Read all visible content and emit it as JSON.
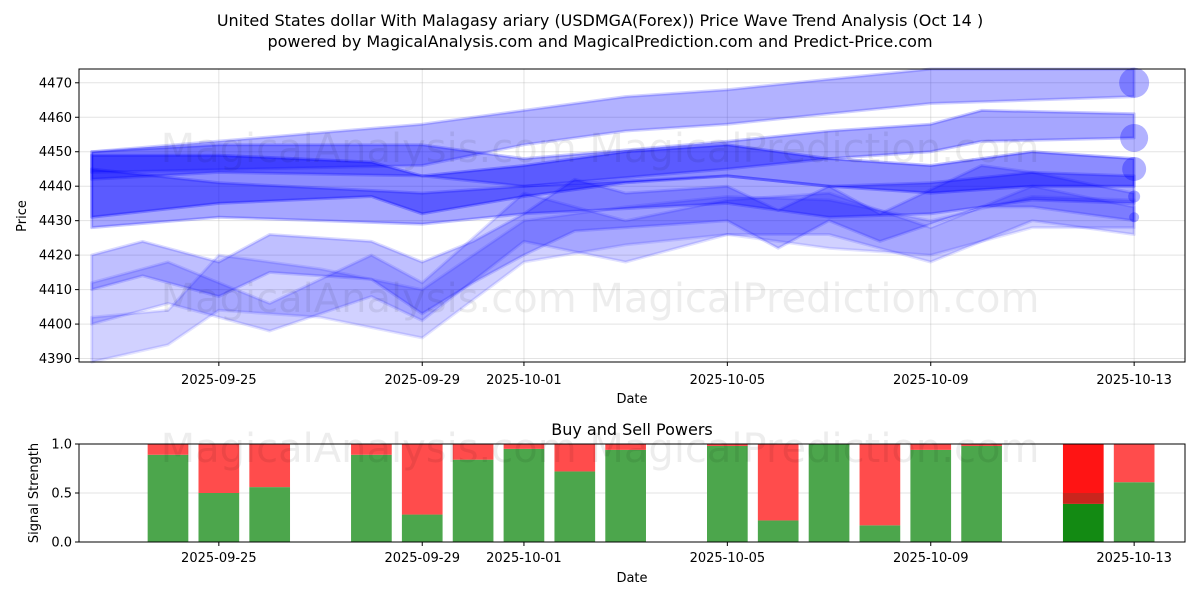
{
  "title_line1": "United States dollar With Malagasy ariary (USDMGA(Forex)) Price Wave Trend Analysis (Oct 14 )",
  "title_line2": "powered by MagicalAnalysis.com and MagicalPrediction.com and Predict-Price.com",
  "watermarks": {
    "top_upper": "MagicalAnalysis.com    MagicalPrediction.com",
    "top_lower": "MagicalAnalysis.com    MagicalPrediction.com",
    "bottom": "MagicalAnalysis.com    MagicalPrediction.com"
  },
  "chart_data": [
    {
      "type": "area",
      "name": "price-wave",
      "xlabel": "Date",
      "ylabel": "Price",
      "ylim": [
        4389,
        4474
      ],
      "xlim": [
        "2025-09-22T06:00",
        "2025-10-14T00:00"
      ],
      "yticks": [
        4390,
        4400,
        4410,
        4420,
        4430,
        4440,
        4450,
        4460,
        4470
      ],
      "xticks": [
        "2025-09-25",
        "2025-09-29",
        "2025-10-01",
        "2025-10-05",
        "2025-10-09",
        "2025-10-13"
      ],
      "grid": true,
      "colors": {
        "band": "#0000ff"
      },
      "bands": [
        {
          "opacity": 0.3,
          "upper": [
            [
              "2025-09-22T12:00",
              4450
            ],
            [
              "2025-09-29",
              4458
            ],
            [
              "2025-10-01",
              4462
            ],
            [
              "2025-10-03",
              4466
            ],
            [
              "2025-10-05",
              4468
            ],
            [
              "2025-10-07",
              4471
            ],
            [
              "2025-10-09",
              4474
            ],
            [
              "2025-10-13",
              4474
            ]
          ],
          "lower": [
            [
              "2025-09-22T12:00",
              4444
            ],
            [
              "2025-09-29",
              4446
            ],
            [
              "2025-10-01",
              4452
            ],
            [
              "2025-10-03",
              4456
            ],
            [
              "2025-10-05",
              4458
            ],
            [
              "2025-10-07",
              4461
            ],
            [
              "2025-10-09",
              4464
            ],
            [
              "2025-10-13",
              4466
            ]
          ]
        },
        {
          "opacity": 0.35,
          "upper": [
            [
              "2025-09-22T12:00",
              4450
            ],
            [
              "2025-09-25",
              4452
            ],
            [
              "2025-09-29",
              4452
            ],
            [
              "2025-10-01",
              4448
            ],
            [
              "2025-10-05",
              4453
            ],
            [
              "2025-10-07",
              4456
            ],
            [
              "2025-10-09",
              4458
            ],
            [
              "2025-10-10",
              4462
            ],
            [
              "2025-10-13",
              4461
            ]
          ],
          "lower": [
            [
              "2025-09-22T12:00",
              4442
            ],
            [
              "2025-09-25",
              4444
            ],
            [
              "2025-09-29",
              4443
            ],
            [
              "2025-10-01",
              4440
            ],
            [
              "2025-10-05",
              4445
            ],
            [
              "2025-10-07",
              4448
            ],
            [
              "2025-10-09",
              4450
            ],
            [
              "2025-10-10",
              4453
            ],
            [
              "2025-10-13",
              4454
            ]
          ]
        },
        {
          "opacity": 0.45,
          "upper": [
            [
              "2025-09-22T12:00",
              4449
            ],
            [
              "2025-09-25",
              4449
            ],
            [
              "2025-09-28",
              4447
            ],
            [
              "2025-09-29",
              4443
            ],
            [
              "2025-10-01",
              4446
            ],
            [
              "2025-10-03",
              4450
            ],
            [
              "2025-10-05",
              4452
            ],
            [
              "2025-10-07",
              4448
            ],
            [
              "2025-10-09",
              4446
            ],
            [
              "2025-10-11",
              4450
            ],
            [
              "2025-10-13",
              4448
            ]
          ],
          "lower": [
            [
              "2025-09-22T12:00",
              4431
            ],
            [
              "2025-09-25",
              4435
            ],
            [
              "2025-09-28",
              4437
            ],
            [
              "2025-09-29",
              4432
            ],
            [
              "2025-10-01",
              4437
            ],
            [
              "2025-10-03",
              4441
            ],
            [
              "2025-10-05",
              4443
            ],
            [
              "2025-10-07",
              4440
            ],
            [
              "2025-10-09",
              4438
            ],
            [
              "2025-10-11",
              4440
            ],
            [
              "2025-10-13",
              4440
            ]
          ]
        },
        {
          "opacity": 0.35,
          "upper": [
            [
              "2025-09-22T12:00",
              4445
            ],
            [
              "2025-09-25",
              4441
            ],
            [
              "2025-09-29",
              4438
            ],
            [
              "2025-10-01",
              4440
            ],
            [
              "2025-10-05",
              4443
            ],
            [
              "2025-10-07",
              4440
            ],
            [
              "2025-10-09",
              4441
            ],
            [
              "2025-10-11",
              4444
            ],
            [
              "2025-10-13",
              4443
            ]
          ],
          "lower": [
            [
              "2025-09-22T12:00",
              4428
            ],
            [
              "2025-09-25",
              4431
            ],
            [
              "2025-09-29",
              4429
            ],
            [
              "2025-10-01",
              4432
            ],
            [
              "2025-10-05",
              4435
            ],
            [
              "2025-10-07",
              4431
            ],
            [
              "2025-10-09",
              4432
            ],
            [
              "2025-10-11",
              4436
            ],
            [
              "2025-10-13",
              4435
            ]
          ]
        },
        {
          "opacity": 0.25,
          "upper": [
            [
              "2025-09-22T12:00",
              4420
            ],
            [
              "2025-09-23T12:00",
              4424
            ],
            [
              "2025-09-25",
              4418
            ],
            [
              "2025-09-26",
              4426
            ],
            [
              "2025-09-28",
              4424
            ],
            [
              "2025-09-29",
              4418
            ],
            [
              "2025-09-30",
              4424
            ],
            [
              "2025-10-01",
              4432
            ],
            [
              "2025-10-02",
              4442
            ],
            [
              "2025-10-03",
              4438
            ],
            [
              "2025-10-05",
              4440
            ],
            [
              "2025-10-06",
              4433
            ],
            [
              "2025-10-07",
              4440
            ],
            [
              "2025-10-08",
              4432
            ],
            [
              "2025-10-10",
              4446
            ],
            [
              "2025-10-11",
              4444
            ],
            [
              "2025-10-13",
              4438
            ]
          ],
          "lower": [
            [
              "2025-09-22T12:00",
              4410
            ],
            [
              "2025-09-23T12:00",
              4414
            ],
            [
              "2025-09-25",
              4408
            ],
            [
              "2025-09-26",
              4415
            ],
            [
              "2025-09-28",
              4413
            ],
            [
              "2025-09-29",
              4403
            ],
            [
              "2025-09-30",
              4412
            ],
            [
              "2025-10-01",
              4420
            ],
            [
              "2025-10-02",
              4427
            ],
            [
              "2025-10-03",
              4428
            ],
            [
              "2025-10-05",
              4430
            ],
            [
              "2025-10-06",
              4422
            ],
            [
              "2025-10-07",
              4430
            ],
            [
              "2025-10-08",
              4424
            ],
            [
              "2025-10-10",
              4434
            ],
            [
              "2025-10-11",
              4434
            ],
            [
              "2025-10-13",
              4430
            ]
          ]
        },
        {
          "opacity": 0.18,
          "upper": [
            [
              "2025-09-22T12:00",
              4402
            ],
            [
              "2025-09-24",
              4404
            ],
            [
              "2025-09-25",
              4420
            ],
            [
              "2025-09-27",
              4416
            ],
            [
              "2025-09-29",
              4410
            ],
            [
              "2025-10-01",
              4430
            ],
            [
              "2025-10-03",
              4434
            ],
            [
              "2025-10-05",
              4437
            ],
            [
              "2025-10-07",
              4436
            ],
            [
              "2025-10-09",
              4430
            ],
            [
              "2025-10-11",
              4437
            ],
            [
              "2025-10-13",
              4436
            ]
          ],
          "lower": [
            [
              "2025-09-22T12:00",
              4389
            ],
            [
              "2025-09-24",
              4394
            ],
            [
              "2025-09-25",
              4404
            ],
            [
              "2025-09-27",
              4402
            ],
            [
              "2025-09-29",
              4396
            ],
            [
              "2025-10-01",
              4418
            ],
            [
              "2025-10-03",
              4423
            ],
            [
              "2025-10-05",
              4426
            ],
            [
              "2025-10-07",
              4422
            ],
            [
              "2025-10-09",
              4420
            ],
            [
              "2025-10-11",
              4428
            ],
            [
              "2025-10-13",
              4428
            ]
          ]
        },
        {
          "opacity": 0.2,
          "upper": [
            [
              "2025-09-22T12:00",
              4412
            ],
            [
              "2025-09-24",
              4418
            ],
            [
              "2025-09-26",
              4406
            ],
            [
              "2025-09-28",
              4420
            ],
            [
              "2025-09-29",
              4412
            ],
            [
              "2025-10-01",
              4438
            ],
            [
              "2025-10-03",
              4430
            ],
            [
              "2025-10-05",
              4436
            ],
            [
              "2025-10-07",
              4438
            ],
            [
              "2025-10-09",
              4428
            ],
            [
              "2025-10-11",
              4440
            ],
            [
              "2025-10-13",
              4434
            ]
          ],
          "lower": [
            [
              "2025-09-22T12:00",
              4400
            ],
            [
              "2025-09-24",
              4406
            ],
            [
              "2025-09-26",
              4398
            ],
            [
              "2025-09-28",
              4408
            ],
            [
              "2025-09-29",
              4401
            ],
            [
              "2025-10-01",
              4424
            ],
            [
              "2025-10-03",
              4418
            ],
            [
              "2025-10-05",
              4426
            ],
            [
              "2025-10-07",
              4426
            ],
            [
              "2025-10-09",
              4418
            ],
            [
              "2025-10-11",
              4430
            ],
            [
              "2025-10-13",
              4426
            ]
          ]
        }
      ],
      "end_markers": [
        {
          "x": "2025-10-13",
          "y": 4470,
          "r": 15
        },
        {
          "x": "2025-10-13",
          "y": 4454,
          "r": 14
        },
        {
          "x": "2025-10-13",
          "y": 4445,
          "r": 12
        },
        {
          "x": "2025-10-13",
          "y": 4437,
          "r": 6
        },
        {
          "x": "2025-10-13",
          "y": 4431,
          "r": 5
        }
      ]
    },
    {
      "type": "bar",
      "name": "buy-sell-powers",
      "title": "Buy and Sell Powers",
      "xlabel": "Date",
      "ylabel": "Signal Strength",
      "ylim": [
        0,
        1
      ],
      "yticks": [
        "0.0",
        "0.5",
        "1.0"
      ],
      "xlim": [
        "2025-09-22T06:00",
        "2025-10-14T00:00"
      ],
      "xticks": [
        "2025-09-25",
        "2025-09-29",
        "2025-10-01",
        "2025-10-05",
        "2025-10-09",
        "2025-10-13"
      ],
      "grid": true,
      "colors": {
        "buy": "#4ca64c",
        "sell": "#ff4c4c",
        "buy_strong": "#138a13",
        "sell_strong": "#ff1414",
        "sell_mid": "#c0281e"
      },
      "dates": [
        "2025-09-24",
        "2025-09-25",
        "2025-09-26",
        "2025-09-28",
        "2025-09-29",
        "2025-09-30",
        "2025-10-01",
        "2025-10-02",
        "2025-10-03",
        "2025-10-05",
        "2025-10-06",
        "2025-10-07",
        "2025-10-08",
        "2025-10-09",
        "2025-10-10",
        "2025-10-12",
        "2025-10-13"
      ],
      "buy": [
        0.89,
        0.5,
        0.56,
        0.89,
        0.28,
        0.84,
        0.95,
        0.72,
        0.94,
        0.98,
        0.22,
        1.0,
        0.17,
        0.94,
        0.98,
        0.39,
        0.61
      ],
      "sell": [
        0.11,
        0.5,
        0.44,
        0.11,
        0.72,
        0.16,
        0.05,
        0.28,
        0.06,
        0.02,
        0.78,
        0.0,
        0.83,
        0.06,
        0.02,
        0.61,
        0.39
      ],
      "strong_index": 15
    }
  ]
}
